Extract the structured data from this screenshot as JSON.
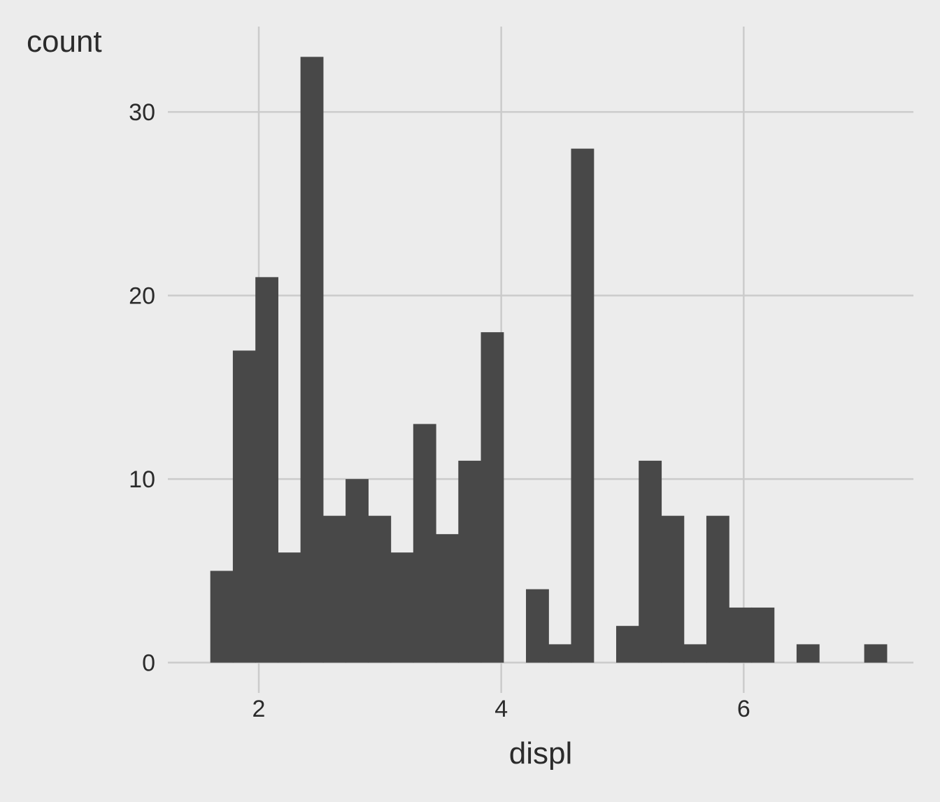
{
  "chart_data": {
    "type": "bar",
    "subtype": "histogram",
    "title": "",
    "xlabel": "displ",
    "ylabel": "count",
    "xlim": [
      1.25,
      7.4
    ],
    "ylim": [
      -1.65,
      34.65
    ],
    "x_ticks": [
      2,
      4,
      6
    ],
    "y_ticks": [
      0,
      10,
      20,
      30
    ],
    "grid": true,
    "bar_color": "#484848",
    "background_color": "#ececec",
    "grid_color": "#cbcbcb",
    "bins": [
      {
        "x0": 1.6,
        "x1": 1.786,
        "count": 5
      },
      {
        "x0": 1.786,
        "x1": 1.972,
        "count": 17
      },
      {
        "x0": 1.972,
        "x1": 2.158,
        "count": 21
      },
      {
        "x0": 2.158,
        "x1": 2.344,
        "count": 6
      },
      {
        "x0": 2.344,
        "x1": 2.53,
        "count": 33
      },
      {
        "x0": 2.53,
        "x1": 2.716,
        "count": 8
      },
      {
        "x0": 2.716,
        "x1": 2.902,
        "count": 10
      },
      {
        "x0": 2.902,
        "x1": 3.088,
        "count": 8
      },
      {
        "x0": 3.088,
        "x1": 3.274,
        "count": 6
      },
      {
        "x0": 3.274,
        "x1": 3.46,
        "count": 13
      },
      {
        "x0": 3.46,
        "x1": 3.646,
        "count": 7
      },
      {
        "x0": 3.646,
        "x1": 3.832,
        "count": 11
      },
      {
        "x0": 3.832,
        "x1": 4.018,
        "count": 18
      },
      {
        "x0": 4.018,
        "x1": 4.204,
        "count": 0
      },
      {
        "x0": 4.204,
        "x1": 4.39,
        "count": 4
      },
      {
        "x0": 4.39,
        "x1": 4.576,
        "count": 1
      },
      {
        "x0": 4.576,
        "x1": 4.762,
        "count": 28
      },
      {
        "x0": 4.762,
        "x1": 4.948,
        "count": 0
      },
      {
        "x0": 4.948,
        "x1": 5.134,
        "count": 2
      },
      {
        "x0": 5.134,
        "x1": 5.32,
        "count": 11
      },
      {
        "x0": 5.32,
        "x1": 5.506,
        "count": 8
      },
      {
        "x0": 5.506,
        "x1": 5.692,
        "count": 1
      },
      {
        "x0": 5.692,
        "x1": 5.878,
        "count": 8
      },
      {
        "x0": 5.878,
        "x1": 6.064,
        "count": 3
      },
      {
        "x0": 6.064,
        "x1": 6.25,
        "count": 3
      },
      {
        "x0": 6.25,
        "x1": 6.436,
        "count": 0
      },
      {
        "x0": 6.436,
        "x1": 6.622,
        "count": 1
      },
      {
        "x0": 6.622,
        "x1": 6.808,
        "count": 0
      },
      {
        "x0": 6.808,
        "x1": 6.994,
        "count": 0
      },
      {
        "x0": 6.994,
        "x1": 7.18,
        "count": 1
      }
    ]
  }
}
